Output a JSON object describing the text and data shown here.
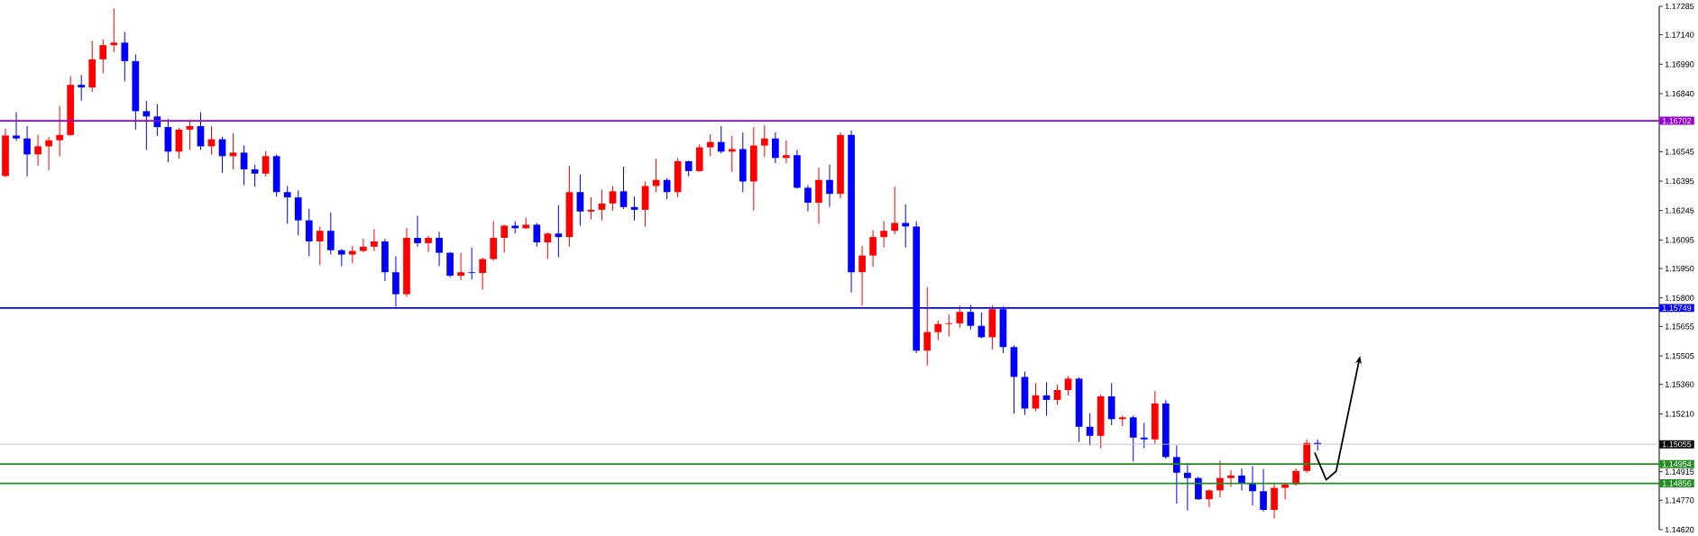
{
  "chart_data": {
    "type": "candlestick",
    "categories": [
      null,
      null,
      null,
      null,
      null,
      null,
      null,
      null,
      null,
      null,
      null,
      null,
      null,
      null,
      null,
      null,
      null,
      null,
      null,
      null,
      null,
      null,
      null,
      null,
      null,
      null,
      null,
      null,
      null,
      null,
      null,
      null,
      null,
      null,
      null,
      null,
      null,
      null,
      null,
      null,
      null,
      null,
      null,
      null,
      null,
      null,
      null,
      null,
      null,
      null,
      null,
      null,
      null,
      null,
      null,
      null,
      null,
      null,
      null,
      null,
      null,
      null,
      null,
      null,
      null,
      null,
      null,
      null,
      null,
      null,
      null,
      null,
      null,
      null,
      null,
      null,
      null,
      null,
      null,
      null,
      null,
      null,
      null,
      null,
      null,
      null,
      null,
      null,
      null,
      null,
      null,
      null,
      null,
      null,
      null,
      null,
      null,
      null,
      null,
      null,
      null,
      null,
      null,
      null,
      null,
      null,
      null,
      null,
      null,
      null,
      null,
      null,
      null,
      null,
      null,
      null,
      null,
      null,
      null,
      null,
      null,
      null,
      null,
      null,
      null,
      null,
      null,
      null,
      null,
      null,
      null,
      null,
      null,
      null,
      null,
      null,
      null,
      null,
      null,
      null,
      null,
      null,
      null,
      null,
      null,
      null,
      null,
      null,
      null,
      null,
      null,
      null,
      null
    ],
    "ohlc": [
      [
        1.16421,
        1.16661,
        1.16415,
        1.16627
      ],
      [
        1.16627,
        1.16746,
        1.166,
        1.16612
      ],
      [
        1.16612,
        1.16675,
        1.16419,
        1.16531
      ],
      [
        1.16531,
        1.1663,
        1.16473,
        1.16572
      ],
      [
        1.16572,
        1.16621,
        1.16451,
        1.16603
      ],
      [
        1.16603,
        1.16778,
        1.16522,
        1.1663
      ],
      [
        1.1663,
        1.1693,
        1.16625,
        1.16885
      ],
      [
        1.16885,
        1.16935,
        1.16805,
        1.16872
      ],
      [
        1.16872,
        1.17109,
        1.16849,
        1.17015
      ],
      [
        1.17015,
        1.17118,
        1.16944,
        1.17087
      ],
      [
        1.17087,
        1.17275,
        1.17051,
        1.171
      ],
      [
        1.171,
        1.17154,
        1.16903,
        1.17006
      ],
      [
        1.17006,
        1.1704,
        1.16657,
        1.16751
      ],
      [
        1.16751,
        1.16805,
        1.16554,
        1.16724
      ],
      [
        1.16724,
        1.16787,
        1.16625,
        1.1667
      ],
      [
        1.1667,
        1.16711,
        1.16491,
        1.16545
      ],
      [
        1.16545,
        1.16666,
        1.16509,
        1.16657
      ],
      [
        1.16657,
        1.16702,
        1.16554,
        1.16675
      ],
      [
        1.16675,
        1.16746,
        1.16554,
        1.16572
      ],
      [
        1.16572,
        1.16675,
        1.16531,
        1.16608
      ],
      [
        1.16608,
        1.16621,
        1.16437,
        1.16522
      ],
      [
        1.16522,
        1.16639,
        1.16455,
        1.1654
      ],
      [
        1.1654,
        1.16576,
        1.16375,
        1.16455
      ],
      [
        1.16455,
        1.16478,
        1.16366,
        1.16433
      ],
      [
        1.16433,
        1.16549,
        1.16419,
        1.16522
      ],
      [
        1.16522,
        1.16531,
        1.16316,
        1.16339
      ],
      [
        1.16339,
        1.1637,
        1.16177,
        1.16312
      ],
      [
        1.16312,
        1.16348,
        1.16119,
        1.16195
      ],
      [
        1.16195,
        1.16254,
        1.16012,
        1.16088
      ],
      [
        1.16088,
        1.16164,
        1.15967,
        1.16142
      ],
      [
        1.16142,
        1.16236,
        1.16021,
        1.16043
      ],
      [
        1.16043,
        1.1605,
        1.15962,
        1.16021
      ],
      [
        1.16021,
        1.16065,
        1.15976,
        1.16039
      ],
      [
        1.16039,
        1.16101,
        1.16034,
        1.16061
      ],
      [
        1.16061,
        1.16151,
        1.16039,
        1.16088
      ],
      [
        1.16088,
        1.161,
        1.15886,
        1.15931
      ],
      [
        1.15931,
        1.16012,
        1.15756,
        1.15819
      ],
      [
        1.15819,
        1.16155,
        1.15806,
        1.16106
      ],
      [
        1.16106,
        1.16218,
        1.16061,
        1.16079
      ],
      [
        1.16079,
        1.16115,
        1.16034,
        1.16106
      ],
      [
        1.16106,
        1.16137,
        1.15962,
        1.1603
      ],
      [
        1.1603,
        1.16034,
        1.15905,
        1.15913
      ],
      [
        1.15913,
        1.1603,
        1.15891,
        1.15931
      ],
      [
        1.15931,
        1.16057,
        1.15895,
        1.15927
      ],
      [
        1.15927,
        1.16005,
        1.15841,
        1.15998
      ],
      [
        1.15998,
        1.16191,
        1.1599,
        1.16106
      ],
      [
        1.16106,
        1.16173,
        1.1603,
        1.16168
      ],
      [
        1.16168,
        1.16191,
        1.16128,
        1.16155
      ],
      [
        1.16155,
        1.16209,
        1.16151,
        1.16173
      ],
      [
        1.16173,
        1.16182,
        1.16061,
        1.16083
      ],
      [
        1.16083,
        1.16133,
        1.15998,
        1.16128
      ],
      [
        1.16128,
        1.16272,
        1.16007,
        1.1611
      ],
      [
        1.1611,
        1.16473,
        1.16061,
        1.16339
      ],
      [
        1.16339,
        1.16428,
        1.16168,
        1.1624
      ],
      [
        1.1624,
        1.16312,
        1.162,
        1.16249
      ],
      [
        1.16249,
        1.16352,
        1.16195,
        1.16281
      ],
      [
        1.16281,
        1.1637,
        1.16245,
        1.16343
      ],
      [
        1.16343,
        1.16469,
        1.16254,
        1.16263
      ],
      [
        1.16263,
        1.16316,
        1.16195,
        1.16249
      ],
      [
        1.16249,
        1.16393,
        1.16164,
        1.1637
      ],
      [
        1.1637,
        1.16509,
        1.16339,
        1.16401
      ],
      [
        1.16401,
        1.1641,
        1.16303,
        1.16339
      ],
      [
        1.16339,
        1.16513,
        1.16312,
        1.16496
      ],
      [
        1.16496,
        1.165,
        1.16419,
        1.16446
      ],
      [
        1.16446,
        1.16581,
        1.16442,
        1.16567
      ],
      [
        1.16567,
        1.16634,
        1.16522,
        1.16594
      ],
      [
        1.16594,
        1.16675,
        1.16536,
        1.16545
      ],
      [
        1.16545,
        1.16625,
        1.16442,
        1.16558
      ],
      [
        1.16558,
        1.16643,
        1.16339,
        1.16393
      ],
      [
        1.16393,
        1.1667,
        1.16245,
        1.16576
      ],
      [
        1.16576,
        1.16679,
        1.16518,
        1.16612
      ],
      [
        1.16612,
        1.16643,
        1.16487,
        1.16513
      ],
      [
        1.16513,
        1.16603,
        1.16487,
        1.16527
      ],
      [
        1.16527,
        1.16554,
        1.16357,
        1.16361
      ],
      [
        1.16361,
        1.16375,
        1.1624,
        1.16285
      ],
      [
        1.16285,
        1.16464,
        1.16177,
        1.16401
      ],
      [
        1.16401,
        1.16478,
        1.16263,
        1.1633
      ],
      [
        1.1633,
        1.16643,
        1.16307,
        1.1663
      ],
      [
        1.1663,
        1.16652,
        1.15828,
        1.15931
      ],
      [
        1.15931,
        1.16065,
        1.15761,
        1.16016
      ],
      [
        1.16016,
        1.16146,
        1.15958,
        1.1611
      ],
      [
        1.1611,
        1.16191,
        1.16057,
        1.16142
      ],
      [
        1.16142,
        1.16366,
        1.16124,
        1.16182
      ],
      [
        1.16182,
        1.16276,
        1.16057,
        1.16164
      ],
      [
        1.16164,
        1.16191,
        1.15519,
        1.15532
      ],
      [
        1.15532,
        1.15855,
        1.15456,
        1.15626
      ],
      [
        1.15626,
        1.15685,
        1.15586,
        1.15667
      ],
      [
        1.15667,
        1.15716,
        1.15604,
        1.15671
      ],
      [
        1.15671,
        1.15761,
        1.15649,
        1.15729
      ],
      [
        1.15729,
        1.15765,
        1.1564,
        1.15658
      ],
      [
        1.15658,
        1.15725,
        1.15595,
        1.156
      ],
      [
        1.156,
        1.15761,
        1.15537,
        1.15743
      ],
      [
        1.15743,
        1.15756,
        1.15519,
        1.1555
      ],
      [
        1.1555,
        1.15559,
        1.1521,
        1.15398
      ],
      [
        1.15398,
        1.15425,
        1.15205,
        1.15237
      ],
      [
        1.15237,
        1.15367,
        1.15223,
        1.15304
      ],
      [
        1.15304,
        1.15371,
        1.15201,
        1.15281
      ],
      [
        1.15281,
        1.15358,
        1.15255,
        1.15331
      ],
      [
        1.15331,
        1.15402,
        1.15304,
        1.15389
      ],
      [
        1.15389,
        1.15395,
        1.15066,
        1.15144
      ],
      [
        1.15144,
        1.15214,
        1.15049,
        1.15098
      ],
      [
        1.15098,
        1.15308,
        1.15035,
        1.15299
      ],
      [
        1.15299,
        1.15367,
        1.15152,
        1.15183
      ],
      [
        1.15183,
        1.15201,
        1.15147,
        1.15192
      ],
      [
        1.15192,
        1.15201,
        1.14968,
        1.15089
      ],
      [
        1.15089,
        1.15165,
        1.15035,
        1.1508
      ],
      [
        1.1508,
        1.15326,
        1.15057,
        1.15263
      ],
      [
        1.15263,
        1.15281,
        1.14981,
        1.1499
      ],
      [
        1.1499,
        1.15049,
        1.14753,
        1.1491
      ],
      [
        1.1491,
        1.14959,
        1.14717,
        1.14883
      ],
      [
        1.14883,
        1.1489,
        1.14771,
        1.14775
      ],
      [
        1.14775,
        1.14825,
        1.14735,
        1.1482
      ],
      [
        1.1482,
        1.14972,
        1.14784,
        1.14883
      ],
      [
        1.14883,
        1.14923,
        1.14838,
        1.14896
      ],
      [
        1.14896,
        1.14932,
        1.1482,
        1.14856
      ],
      [
        1.14856,
        1.14945,
        1.14744,
        1.14816
      ],
      [
        1.14816,
        1.14928,
        1.14713,
        1.14721
      ],
      [
        1.14721,
        1.14856,
        1.14677,
        1.14833
      ],
      [
        1.14833,
        1.1486,
        1.14775,
        1.14851
      ],
      [
        1.14851,
        1.14932,
        1.14845,
        1.14919
      ],
      [
        1.14919,
        1.1508,
        1.1491,
        1.15062
      ],
      [
        1.15062,
        1.1508,
        1.15022,
        1.15055
      ],
      null,
      null,
      null,
      null,
      null,
      null,
      null,
      null,
      null,
      null,
      null,
      null,
      null,
      null,
      null,
      null,
      null,
      null,
      null,
      null,
      null,
      null,
      null,
      null,
      null,
      null,
      null,
      null,
      null,
      null,
      null
    ],
    "colors": [
      "#ff0000",
      "#0000ff",
      "#0000ff",
      "#ff0000",
      "#ff0000",
      "#ff0000",
      "#ff0000",
      "#0000ff",
      "#ff0000",
      "#ff0000",
      "#ff0000",
      "#0000ff",
      "#0000ff",
      "#0000ff",
      "#0000ff",
      "#0000ff",
      "#ff0000",
      "#ff0000",
      "#0000ff",
      "#ff0000",
      "#0000ff",
      "#ff0000",
      "#0000ff",
      "#0000ff",
      "#ff0000",
      "#0000ff",
      "#0000ff",
      "#0000ff",
      "#0000ff",
      "#ff0000",
      "#0000ff",
      "#0000ff",
      "#ff0000",
      "#ff0000",
      "#ff0000",
      "#0000ff",
      "#0000ff",
      "#ff0000",
      "#0000ff",
      "#ff0000",
      "#0000ff",
      "#0000ff",
      "#ff0000",
      "#0000ff",
      "#ff0000",
      "#ff0000",
      "#ff0000",
      "#0000ff",
      "#ff0000",
      "#0000ff",
      "#ff0000",
      "#0000ff",
      "#ff0000",
      "#0000ff",
      "#ff0000",
      "#ff0000",
      "#ff0000",
      "#0000ff",
      "#0000ff",
      "#ff0000",
      "#ff0000",
      "#0000ff",
      "#ff0000",
      "#0000ff",
      "#ff0000",
      "#ff0000",
      "#0000ff",
      "#ff0000",
      "#0000ff",
      "#ff0000",
      "#ff0000",
      "#0000ff",
      "#ff0000",
      "#0000ff",
      "#0000ff",
      "#ff0000",
      "#0000ff",
      "#ff0000",
      "#0000ff",
      "#ff0000",
      "#ff0000",
      "#ff0000",
      "#ff0000",
      "#0000ff",
      "#0000ff",
      "#ff0000",
      "#ff0000",
      "#ff0000",
      "#ff0000",
      "#0000ff",
      "#0000ff",
      "#ff0000",
      "#0000ff",
      "#0000ff",
      "#0000ff",
      "#ff0000",
      "#0000ff",
      "#ff0000",
      "#ff0000",
      "#0000ff",
      "#0000ff",
      "#ff0000",
      "#0000ff",
      "#ff0000",
      "#0000ff",
      "#0000ff",
      "#ff0000",
      "#0000ff",
      "#0000ff",
      "#0000ff",
      "#0000ff",
      "#ff0000",
      "#ff0000",
      "#ff0000",
      "#0000ff",
      "#0000ff",
      "#0000ff",
      "#ff0000",
      "#ff0000",
      "#ff0000",
      "#ff0000",
      "#0000ff",
      null,
      null,
      null,
      null,
      null,
      null,
      null,
      null,
      null,
      null,
      null,
      null,
      null,
      null,
      null,
      null,
      null,
      null,
      null,
      null,
      null,
      null,
      null,
      null,
      null,
      null,
      null,
      null,
      null,
      null,
      null
    ],
    "ylim": [
      1.1462,
      1.17285
    ],
    "yticks": [
      {
        "value": 1.1462,
        "label": "1.14620"
      },
      {
        "value": 1.1477,
        "label": "1.14770"
      },
      {
        "value": 1.14915,
        "label": "1.14915"
      },
      {
        "value": 1.1521,
        "label": "1.15210"
      },
      {
        "value": 1.1536,
        "label": "1.15360"
      },
      {
        "value": 1.15505,
        "label": "1.15505"
      },
      {
        "value": 1.15655,
        "label": "1.15655"
      },
      {
        "value": 1.158,
        "label": "1.15800"
      },
      {
        "value": 1.1595,
        "label": "1.15950"
      },
      {
        "value": 1.16095,
        "label": "1.16095"
      },
      {
        "value": 1.16245,
        "label": "1.16245"
      },
      {
        "value": 1.16395,
        "label": "1.16395"
      },
      {
        "value": 1.16545,
        "label": "1.16545"
      },
      {
        "value": 1.1684,
        "label": "1.16840"
      },
      {
        "value": 1.1699,
        "label": "1.16990"
      },
      {
        "value": 1.1714,
        "label": "1.17140"
      },
      {
        "value": 1.17285,
        "label": "1.17285"
      }
    ],
    "ref_lines": [
      {
        "axis": "y",
        "value": 1.16702,
        "label": "1.16702",
        "color": "#9400d3"
      },
      {
        "axis": "y",
        "value": 1.15749,
        "label": "1.15749",
        "color": "#0000ff"
      },
      {
        "axis": "y",
        "value": 1.15055,
        "label": "1.15055",
        "color": "#c0c0c0"
      },
      {
        "axis": "y",
        "value": 1.14954,
        "label": "1.14954",
        "color": "#228b22"
      },
      {
        "axis": "y",
        "value": 1.14856,
        "label": "1.14856",
        "color": "#228b22"
      }
    ],
    "tick_labels": "y"
  }
}
